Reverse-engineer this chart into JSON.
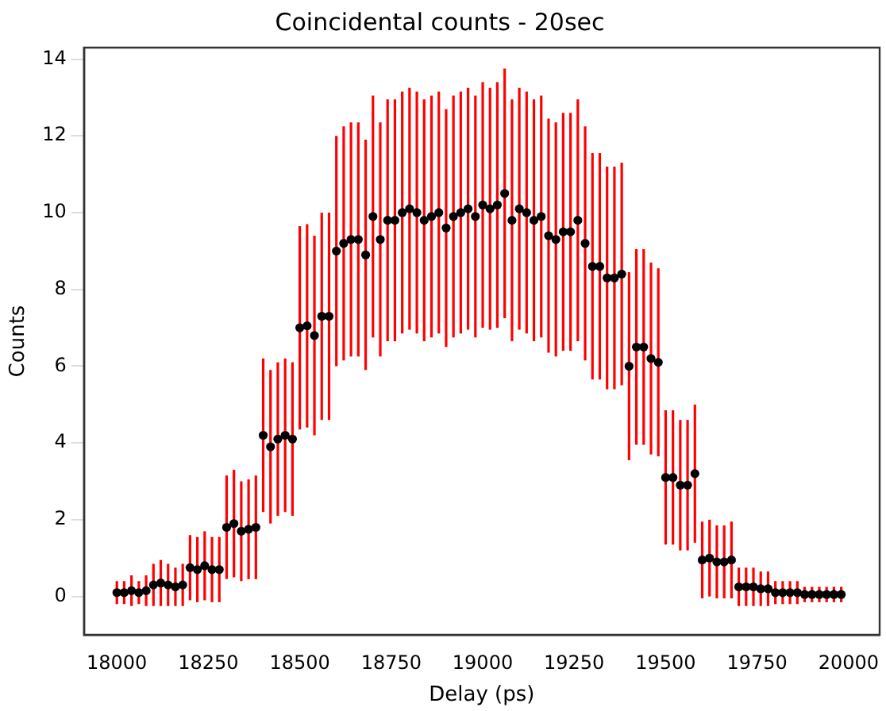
{
  "chart_data": {
    "type": "scatter",
    "title": "Coincidental counts - 20sec",
    "xlabel": "Delay (ps)",
    "ylabel": "Counts",
    "xlim": [
      17910,
      20085
    ],
    "xticks": [
      18000,
      18250,
      18500,
      18750,
      19000,
      19250,
      19500,
      19750,
      20000
    ],
    "ylim": [
      -1,
      14.3
    ],
    "yticks": [
      0,
      2,
      4,
      6,
      8,
      10,
      12,
      14
    ],
    "grid": false,
    "legend": false,
    "marker": "circle",
    "series": [
      {
        "color": "#000000",
        "x": [
          18000,
          18020,
          18040,
          18060,
          18080,
          18100,
          18120,
          18140,
          18160,
          18180,
          18200,
          18220,
          18240,
          18260,
          18280,
          18300,
          18320,
          18340,
          18360,
          18380,
          18400,
          18420,
          18440,
          18460,
          18480,
          18500,
          18520,
          18540,
          18560,
          18580,
          18600,
          18620,
          18640,
          18660,
          18680,
          18700,
          18720,
          18740,
          18760,
          18780,
          18800,
          18820,
          18840,
          18860,
          18880,
          18900,
          18920,
          18940,
          18960,
          18980,
          19000,
          19020,
          19040,
          19060,
          19080,
          19100,
          19120,
          19140,
          19160,
          19180,
          19200,
          19220,
          19240,
          19260,
          19280,
          19300,
          19320,
          19340,
          19360,
          19380,
          19400,
          19420,
          19440,
          19460,
          19480,
          19500,
          19520,
          19540,
          19560,
          19580,
          19600,
          19620,
          19640,
          19660,
          19680,
          19700,
          19720,
          19740,
          19760,
          19780,
          19800,
          19820,
          19840,
          19860,
          19880,
          19900,
          19920,
          19940,
          19960,
          19980
        ],
        "values": [
          0.1,
          0.1,
          0.15,
          0.1,
          0.15,
          0.3,
          0.35,
          0.3,
          0.25,
          0.3,
          0.75,
          0.7,
          0.8,
          0.7,
          0.7,
          1.8,
          1.9,
          1.7,
          1.75,
          1.8,
          4.2,
          3.9,
          4.1,
          4.2,
          4.1,
          7.0,
          7.05,
          6.8,
          7.3,
          7.3,
          9.0,
          9.2,
          9.3,
          9.3,
          8.9,
          9.9,
          9.3,
          9.8,
          9.8,
          10.0,
          10.1,
          10.0,
          9.8,
          9.9,
          10.0,
          9.6,
          9.9,
          10.0,
          10.1,
          9.9,
          10.2,
          10.1,
          10.2,
          10.5,
          9.8,
          10.1,
          10.0,
          9.8,
          9.9,
          9.4,
          9.3,
          9.5,
          9.5,
          9.8,
          9.2,
          8.6,
          8.6,
          8.3,
          8.3,
          8.4,
          6.0,
          6.5,
          6.5,
          6.2,
          6.1,
          3.1,
          3.1,
          2.9,
          2.9,
          3.2,
          0.95,
          1.0,
          0.9,
          0.9,
          0.95,
          0.25,
          0.25,
          0.25,
          0.2,
          0.2,
          0.1,
          0.1,
          0.1,
          0.1,
          0.05,
          0.05,
          0.05,
          0.05,
          0.05,
          0.05
        ],
        "errors": [
          0.3,
          0.3,
          0.4,
          0.3,
          0.4,
          0.55,
          0.6,
          0.55,
          0.5,
          0.55,
          0.85,
          0.85,
          0.9,
          0.85,
          0.85,
          1.35,
          1.4,
          1.3,
          1.3,
          1.35,
          2.0,
          2.0,
          2.0,
          2.0,
          2.0,
          2.65,
          2.65,
          2.6,
          2.7,
          2.7,
          3.0,
          3.05,
          3.05,
          3.05,
          3.0,
          3.15,
          3.05,
          3.15,
          3.15,
          3.15,
          3.15,
          3.15,
          3.15,
          3.15,
          3.15,
          3.1,
          3.15,
          3.15,
          3.15,
          3.15,
          3.2,
          3.15,
          3.2,
          3.25,
          3.15,
          3.15,
          3.15,
          3.15,
          3.15,
          3.05,
          3.05,
          3.1,
          3.1,
          3.15,
          3.05,
          2.95,
          2.95,
          2.9,
          2.9,
          2.9,
          2.45,
          2.55,
          2.55,
          2.5,
          2.45,
          1.75,
          1.75,
          1.7,
          1.7,
          1.8,
          1.0,
          1.0,
          0.95,
          0.95,
          1.0,
          0.5,
          0.5,
          0.5,
          0.45,
          0.45,
          0.3,
          0.3,
          0.3,
          0.3,
          0.2,
          0.2,
          0.2,
          0.2,
          0.2,
          0.2
        ]
      }
    ]
  }
}
